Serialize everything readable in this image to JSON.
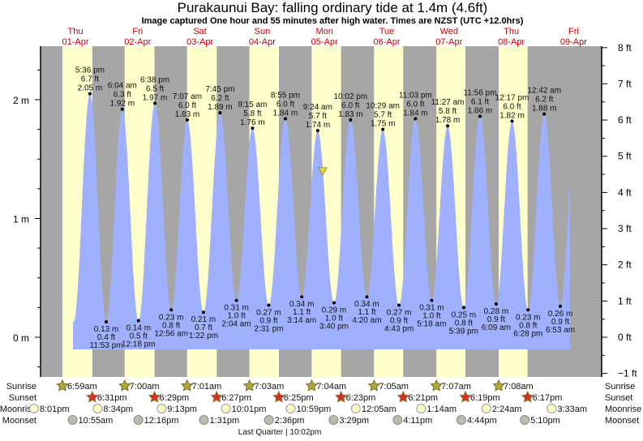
{
  "chart_data": {
    "type": "area",
    "title": "Purakaunui Bay: falling  ordinary tide at 1.4m (4.6ft)",
    "subtitle": "Image captured One hour and 55 minutes after high water. Times are NZST (UTC +12.0hrs)",
    "days": [
      {
        "dow": "Thu",
        "date": "01-Apr"
      },
      {
        "dow": "Fri",
        "date": "02-Apr"
      },
      {
        "dow": "Sat",
        "date": "03-Apr"
      },
      {
        "dow": "Sun",
        "date": "04-Apr"
      },
      {
        "dow": "Mon",
        "date": "05-Apr"
      },
      {
        "dow": "Tue",
        "date": "06-Apr"
      },
      {
        "dow": "Wed",
        "date": "07-Apr"
      },
      {
        "dow": "Thu",
        "date": "08-Apr"
      },
      {
        "dow": "Fri",
        "date": "09-Apr"
      }
    ],
    "left_axis": {
      "unit": "m",
      "ticks": [
        "0 m",
        "1 m",
        "2 m"
      ],
      "ylim": [
        -0.3,
        2.45
      ]
    },
    "right_axis": {
      "unit": "ft",
      "ticks": [
        "−1 ft",
        "0 ft",
        "1 ft",
        "2 ft",
        "3 ft",
        "4 ft",
        "5 ft",
        "6 ft",
        "7 ft",
        "8 ft"
      ]
    },
    "extremes": [
      {
        "day": 0,
        "type": "high",
        "time": "5:36 pm",
        "ft": "6.7 ft",
        "m": "2.05 m"
      },
      {
        "day": 0,
        "type": "low",
        "time": "11:53 pm",
        "ft": "0.4 ft",
        "m": "0.13 m"
      },
      {
        "day": 1,
        "type": "high",
        "time": "6:04 am",
        "ft": "6.3 ft",
        "m": "1.92 m"
      },
      {
        "day": 1,
        "type": "low",
        "time": "12:18 pm",
        "ft": "0.5 ft",
        "m": "0.14 m"
      },
      {
        "day": 1,
        "type": "high",
        "time": "6:38 pm",
        "ft": "6.5 ft",
        "m": "1.97 m"
      },
      {
        "day": 2,
        "type": "low",
        "time": "12:56 am",
        "ft": "0.8 ft",
        "m": "0.23 m"
      },
      {
        "day": 2,
        "type": "high",
        "time": "7:07 am",
        "ft": "6.0 ft",
        "m": "1.83 m"
      },
      {
        "day": 2,
        "type": "low",
        "time": "1:22 pm",
        "ft": "0.7 ft",
        "m": "0.21 m"
      },
      {
        "day": 2,
        "type": "high",
        "time": "7:45 pm",
        "ft": "6.2 ft",
        "m": "1.89 m"
      },
      {
        "day": 3,
        "type": "low",
        "time": "2:04 am",
        "ft": "1.0 ft",
        "m": "0.31 m"
      },
      {
        "day": 3,
        "type": "high",
        "time": "8:15 am",
        "ft": "5.8 ft",
        "m": "1.76 m"
      },
      {
        "day": 3,
        "type": "low",
        "time": "2:31 pm",
        "ft": "0.9 ft",
        "m": "0.27 m"
      },
      {
        "day": 3,
        "type": "high",
        "time": "8:55 pm",
        "ft": "6.0 ft",
        "m": "1.84 m"
      },
      {
        "day": 4,
        "type": "low",
        "time": "3:14 am",
        "ft": "1.1 ft",
        "m": "0.34 m"
      },
      {
        "day": 4,
        "type": "high",
        "time": "9:24 am",
        "ft": "5.7 ft",
        "m": "1.74 m"
      },
      {
        "day": 4,
        "type": "low",
        "time": "3:40 pm",
        "ft": "1.0 ft",
        "m": "0.29 m"
      },
      {
        "day": 4,
        "type": "high",
        "time": "10:02 pm",
        "ft": "6.0 ft",
        "m": "1.83 m"
      },
      {
        "day": 5,
        "type": "low",
        "time": "4:20 am",
        "ft": "1.1 ft",
        "m": "0.34 m"
      },
      {
        "day": 5,
        "type": "high",
        "time": "10:29 am",
        "ft": "5.7 ft",
        "m": "1.75 m"
      },
      {
        "day": 5,
        "type": "low",
        "time": "4:43 pm",
        "ft": "0.9 ft",
        "m": "0.27 m"
      },
      {
        "day": 5,
        "type": "high",
        "time": "11:03 pm",
        "ft": "6.0 ft",
        "m": "1.84 m"
      },
      {
        "day": 6,
        "type": "low",
        "time": "5:18 am",
        "ft": "1.0 ft",
        "m": "0.31 m"
      },
      {
        "day": 6,
        "type": "high",
        "time": "11:27 am",
        "ft": "5.8 ft",
        "m": "1.78 m"
      },
      {
        "day": 6,
        "type": "low",
        "time": "5:39 pm",
        "ft": "0.8 ft",
        "m": "0.25 m"
      },
      {
        "day": 6,
        "type": "high",
        "time": "11:56 pm",
        "ft": "6.1 ft",
        "m": "1.86 m"
      },
      {
        "day": 7,
        "type": "low",
        "time": "6:09 am",
        "ft": "0.9 ft",
        "m": "0.28 m"
      },
      {
        "day": 7,
        "type": "high",
        "time": "12:17 pm",
        "ft": "6.0 ft",
        "m": "1.82 m"
      },
      {
        "day": 7,
        "type": "low",
        "time": "6:28 pm",
        "ft": "0.8 ft",
        "m": "0.23 m"
      },
      {
        "day": 8,
        "type": "high",
        "time": "12:42 am",
        "ft": "6.2 ft",
        "m": "1.88 m"
      },
      {
        "day": 8,
        "type": "low",
        "time": "6:53 am",
        "ft": "0.9 ft",
        "m": "0.26 m"
      }
    ],
    "current": {
      "day": 4,
      "time": "11:19 am",
      "level_m": 1.4
    },
    "rows": {
      "sunrise": "Sunrise",
      "sunset": "Sunset",
      "moonrise": "Moonrise",
      "moonset": "Moonset"
    },
    "sunrise": [
      {
        "day": 0,
        "time": "6:59am"
      },
      {
        "day": 1,
        "time": "7:00am"
      },
      {
        "day": 2,
        "time": "7:01am"
      },
      {
        "day": 3,
        "time": "7:03am"
      },
      {
        "day": 4,
        "time": "7:04am"
      },
      {
        "day": 5,
        "time": "7:05am"
      },
      {
        "day": 6,
        "time": "7:07am"
      },
      {
        "day": 7,
        "time": "7:08am"
      }
    ],
    "sunset": [
      {
        "day": 0,
        "time": "6:31pm"
      },
      {
        "day": 1,
        "time": "6:29pm"
      },
      {
        "day": 2,
        "time": "6:27pm"
      },
      {
        "day": 3,
        "time": "6:25pm"
      },
      {
        "day": 4,
        "time": "6:23pm"
      },
      {
        "day": 5,
        "time": "6:21pm"
      },
      {
        "day": 6,
        "time": "6:19pm"
      },
      {
        "day": 7,
        "time": "6:17pm"
      }
    ],
    "moonrise": [
      {
        "day": -1,
        "time": "8:01pm"
      },
      {
        "day": 0,
        "time": "8:34pm"
      },
      {
        "day": 1,
        "time": "9:13pm"
      },
      {
        "day": 2,
        "time": "10:01pm"
      },
      {
        "day": 3,
        "time": "10:59pm"
      },
      {
        "day": 5,
        "time": "12:05am"
      },
      {
        "day": 6,
        "time": "1:14am"
      },
      {
        "day": 7,
        "time": "2:24am"
      },
      {
        "day": 8,
        "time": "3:33am"
      }
    ],
    "moonset": [
      {
        "day": 0,
        "time": "10:55am"
      },
      {
        "day": 1,
        "time": "12:16pm"
      },
      {
        "day": 2,
        "time": "1:31pm"
      },
      {
        "day": 3,
        "time": "2:36pm"
      },
      {
        "day": 4,
        "time": "3:29pm"
      },
      {
        "day": 5,
        "time": "4:11pm"
      },
      {
        "day": 6,
        "time": "4:44pm"
      },
      {
        "day": 7,
        "time": "5:10pm"
      }
    ],
    "moon_phase": {
      "day": 3,
      "text": "Last Quarter | 10:02pm"
    },
    "colors": {
      "day": "#ffffcc",
      "night": "#a6a6a6",
      "water": "#9fb0ff",
      "label": "#cc0000",
      "marker": "#e8e030"
    }
  }
}
